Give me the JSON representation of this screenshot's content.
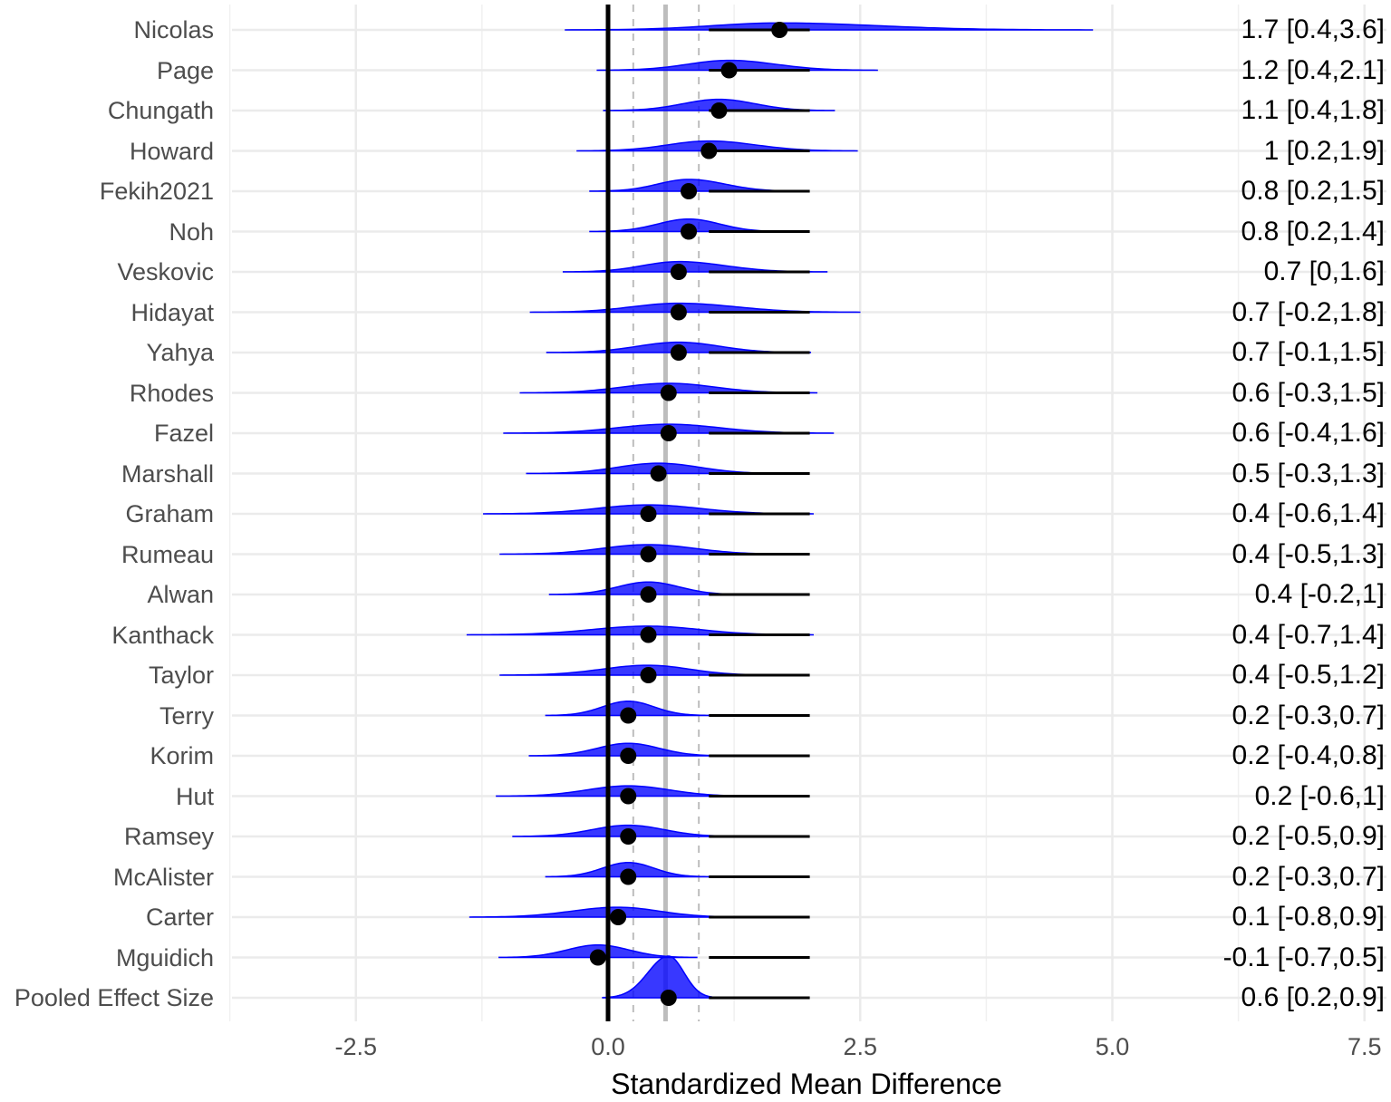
{
  "chart_data": {
    "type": "forest-density",
    "title": "",
    "xlabel": "Standardized Mean Difference",
    "ylabel": "",
    "xlim": [
      -3.75,
      7.6
    ],
    "xticks": [
      -2.5,
      0.0,
      2.5,
      5.0,
      7.5
    ],
    "xtick_labels": [
      "-2.5",
      "0.0",
      "2.5",
      "5.0",
      "7.5"
    ],
    "grid": true,
    "reference_lines": {
      "zero_line": 0.0,
      "pooled_estimate": 0.57,
      "pooled_ci_lower": 0.25,
      "pooled_ci_upper": 0.9
    },
    "density_color": "#0000ff",
    "point_color": "#000000",
    "studies": [
      {
        "name": "Nicolas",
        "estimate": 1.7,
        "lower": 0.4,
        "upper": 3.6,
        "label": "1.7 [0.4,3.6]"
      },
      {
        "name": "Page",
        "estimate": 1.2,
        "lower": 0.4,
        "upper": 2.1,
        "label": "1.2 [0.4,2.1]"
      },
      {
        "name": "Chungath",
        "estimate": 1.1,
        "lower": 0.4,
        "upper": 1.8,
        "label": "1.1 [0.4,1.8]"
      },
      {
        "name": "Howard",
        "estimate": 1.0,
        "lower": 0.2,
        "upper": 1.9,
        "label": "1 [0.2,1.9]"
      },
      {
        "name": "Fekih2021",
        "estimate": 0.8,
        "lower": 0.2,
        "upper": 1.5,
        "label": "0.8 [0.2,1.5]"
      },
      {
        "name": "Noh",
        "estimate": 0.8,
        "lower": 0.2,
        "upper": 1.4,
        "label": "0.8 [0.2,1.4]"
      },
      {
        "name": "Veskovic",
        "estimate": 0.7,
        "lower": 0.0,
        "upper": 1.6,
        "label": "0.7 [0,1.6]"
      },
      {
        "name": "Hidayat",
        "estimate": 0.7,
        "lower": -0.2,
        "upper": 1.8,
        "label": "0.7 [-0.2,1.8]"
      },
      {
        "name": "Yahya",
        "estimate": 0.7,
        "lower": -0.1,
        "upper": 1.5,
        "label": "0.7 [-0.1,1.5]"
      },
      {
        "name": "Rhodes",
        "estimate": 0.6,
        "lower": -0.3,
        "upper": 1.5,
        "label": "0.6 [-0.3,1.5]"
      },
      {
        "name": "Fazel",
        "estimate": 0.6,
        "lower": -0.4,
        "upper": 1.6,
        "label": "0.6 [-0.4,1.6]"
      },
      {
        "name": "Marshall",
        "estimate": 0.5,
        "lower": -0.3,
        "upper": 1.3,
        "label": "0.5 [-0.3,1.3]"
      },
      {
        "name": "Graham",
        "estimate": 0.4,
        "lower": -0.6,
        "upper": 1.4,
        "label": "0.4 [-0.6,1.4]"
      },
      {
        "name": "Rumeau",
        "estimate": 0.4,
        "lower": -0.5,
        "upper": 1.3,
        "label": "0.4 [-0.5,1.3]"
      },
      {
        "name": "Alwan",
        "estimate": 0.4,
        "lower": -0.2,
        "upper": 1.0,
        "label": "0.4 [-0.2,1]"
      },
      {
        "name": "Kanthack",
        "estimate": 0.4,
        "lower": -0.7,
        "upper": 1.4,
        "label": "0.4 [-0.7,1.4]"
      },
      {
        "name": "Taylor",
        "estimate": 0.4,
        "lower": -0.5,
        "upper": 1.2,
        "label": "0.4 [-0.5,1.2]"
      },
      {
        "name": "Terry",
        "estimate": 0.2,
        "lower": -0.3,
        "upper": 0.7,
        "label": "0.2 [-0.3,0.7]"
      },
      {
        "name": "Korim",
        "estimate": 0.2,
        "lower": -0.4,
        "upper": 0.8,
        "label": "0.2 [-0.4,0.8]"
      },
      {
        "name": "Hut",
        "estimate": 0.2,
        "lower": -0.6,
        "upper": 1.0,
        "label": "0.2 [-0.6,1]"
      },
      {
        "name": "Ramsey",
        "estimate": 0.2,
        "lower": -0.5,
        "upper": 0.9,
        "label": "0.2 [-0.5,0.9]"
      },
      {
        "name": "McAlister",
        "estimate": 0.2,
        "lower": -0.3,
        "upper": 0.7,
        "label": "0.2 [-0.3,0.7]"
      },
      {
        "name": "Carter",
        "estimate": 0.1,
        "lower": -0.8,
        "upper": 0.9,
        "label": "0.1 [-0.8,0.9]"
      },
      {
        "name": "Mguidich",
        "estimate": -0.1,
        "lower": -0.7,
        "upper": 0.5,
        "label": "-0.1 [-0.7,0.5]"
      },
      {
        "name": "Pooled Effect Size",
        "estimate": 0.6,
        "lower": 0.2,
        "upper": 0.9,
        "label": "0.6 [0.2,0.9]"
      }
    ]
  }
}
